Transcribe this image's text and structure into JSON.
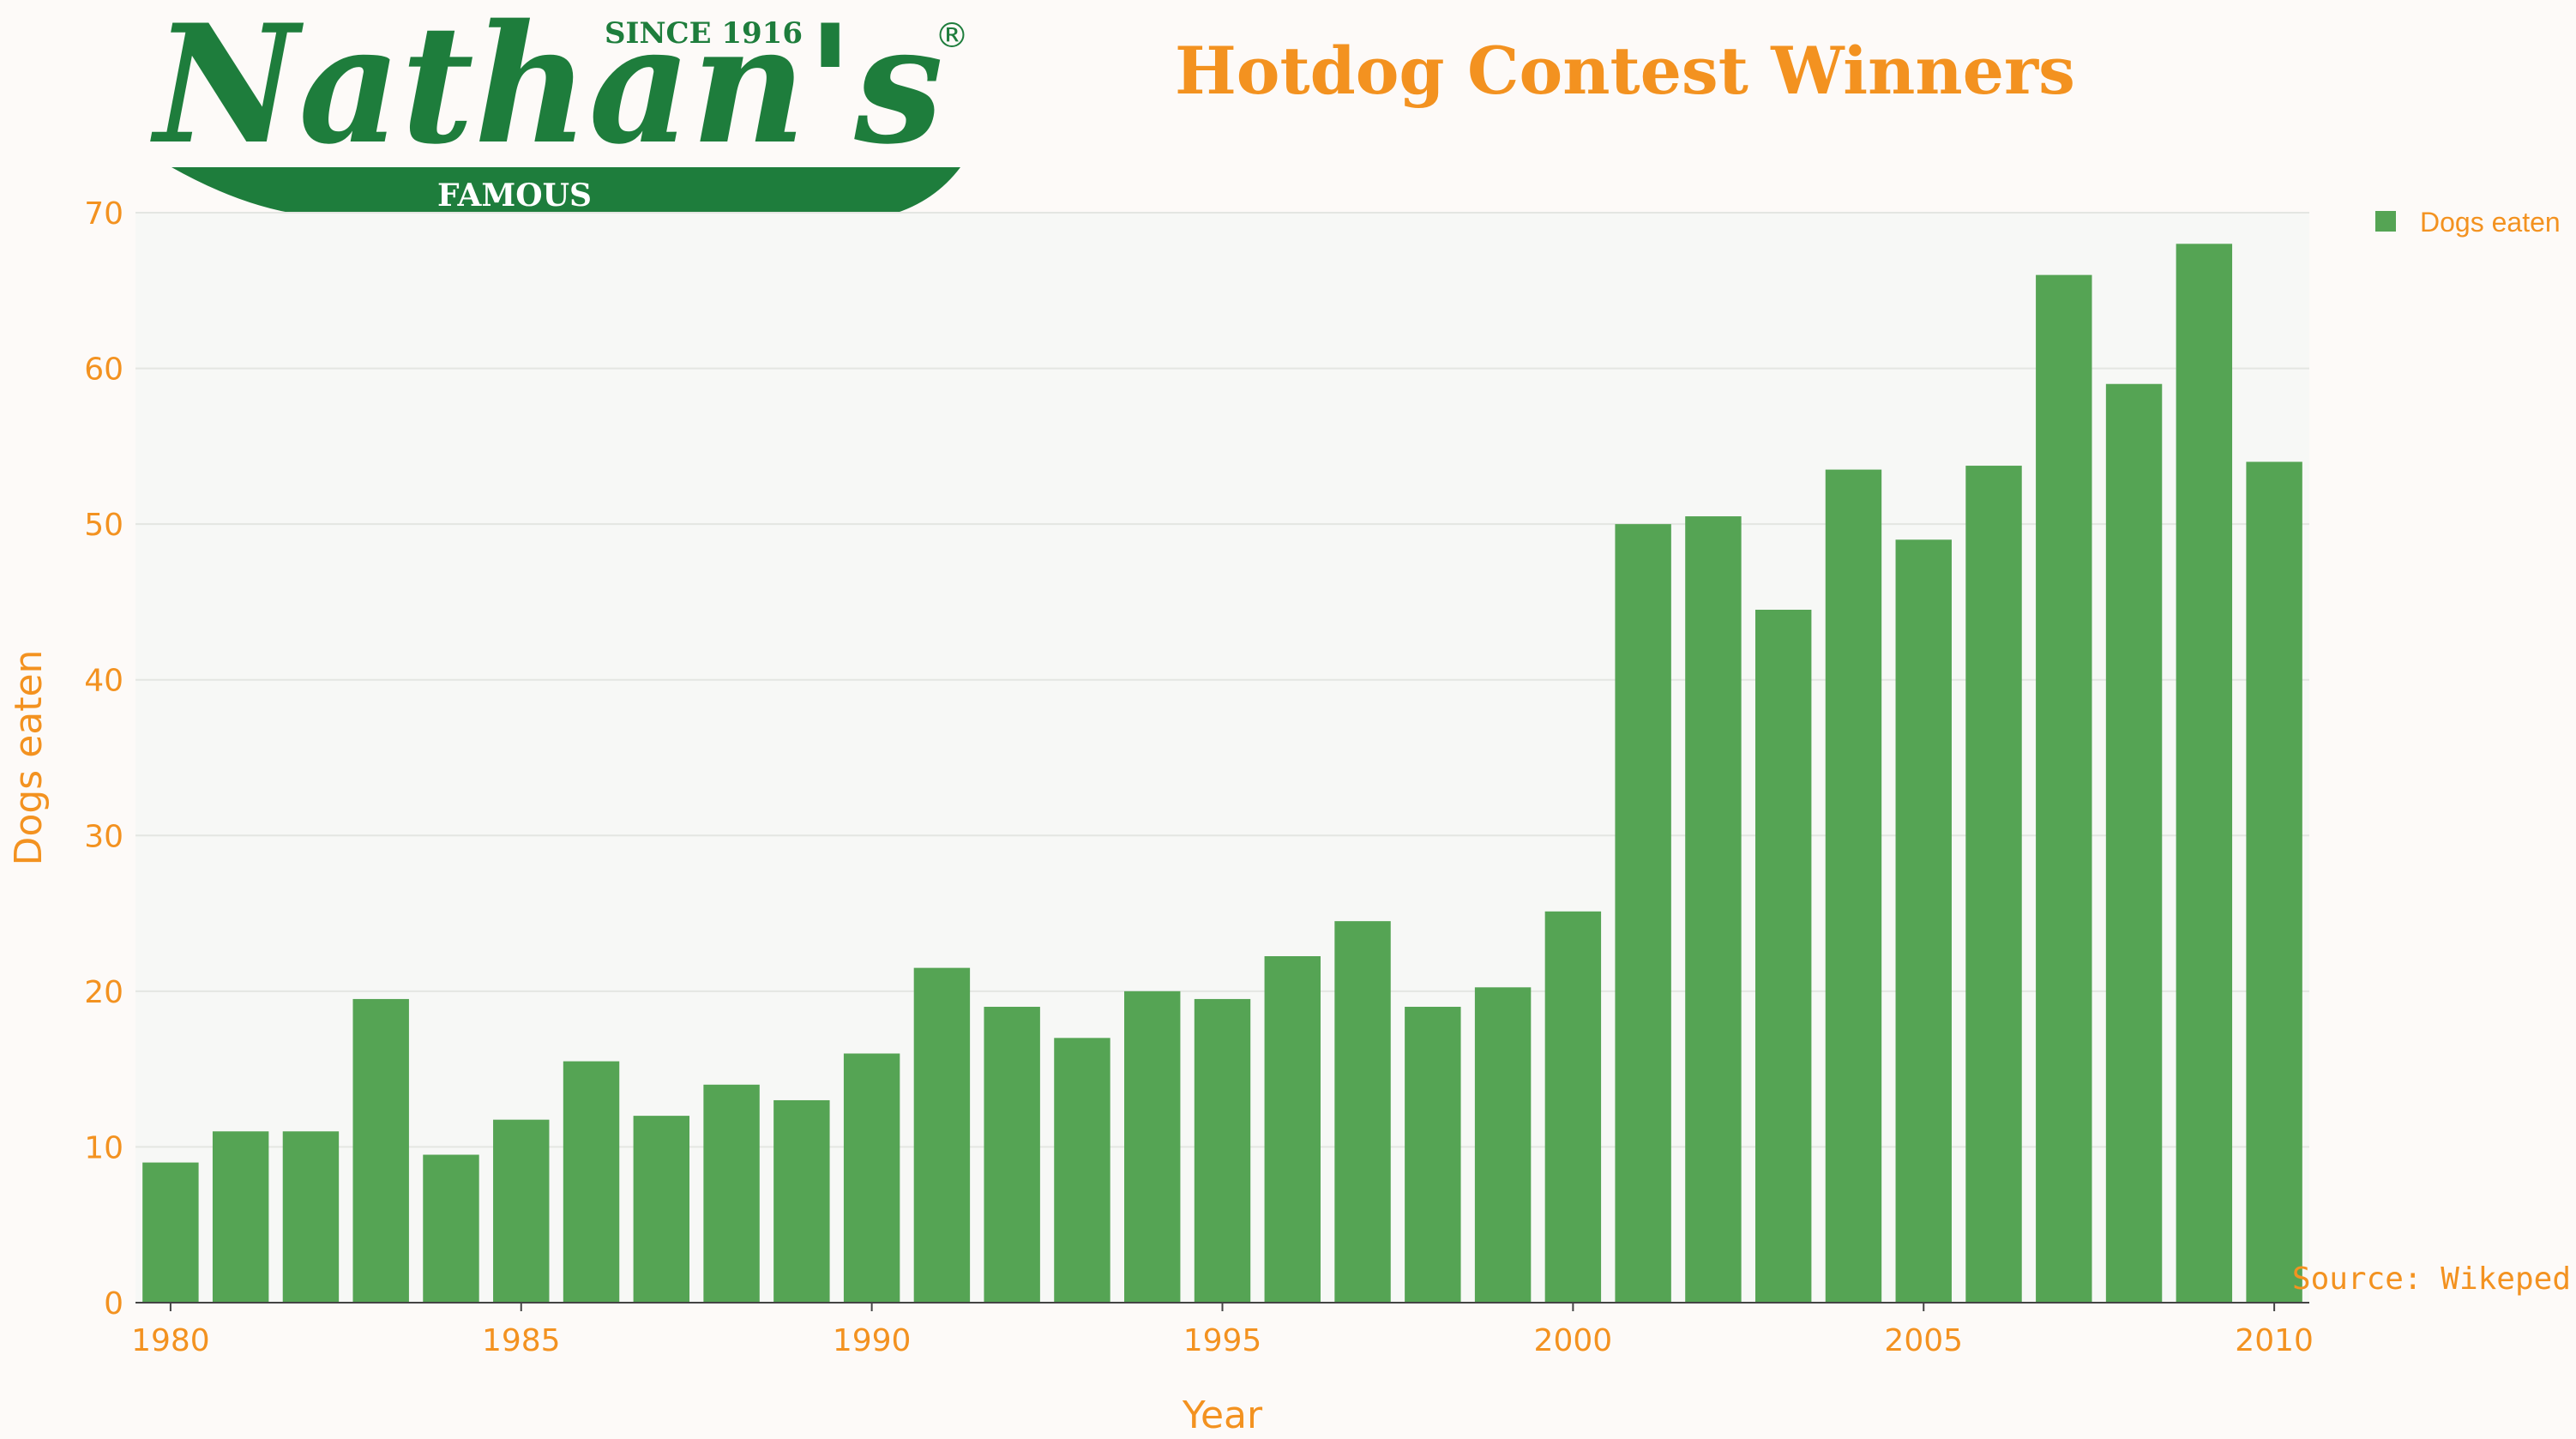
{
  "title": "Hotdog Contest Winners",
  "logo": {
    "brand": "Nathan's",
    "since": "SINCE 1916",
    "tagline": "FAMOUS",
    "registered": "®",
    "color": "#1e7d3c"
  },
  "source_note": "Source: Wikeped",
  "colors": {
    "bar": "#55a454",
    "text": "#f39220",
    "plot_bg": "#f7f8f6",
    "page_bg": "#fdfaf8",
    "grid": "#e4e6e2"
  },
  "chart_data": {
    "type": "bar",
    "title": "Hotdog Contest Winners",
    "xlabel": "Year",
    "ylabel": "Dogs eaten",
    "ylim": [
      0,
      70
    ],
    "yticks": [
      0,
      10,
      20,
      30,
      40,
      50,
      60,
      70
    ],
    "xticks": [
      1980,
      1985,
      1990,
      1995,
      2000,
      2005,
      2010
    ],
    "grid": true,
    "legend_position": "top-right",
    "categories": [
      1980,
      1981,
      1982,
      1983,
      1984,
      1985,
      1986,
      1987,
      1988,
      1989,
      1990,
      1991,
      1992,
      1993,
      1994,
      1995,
      1996,
      1997,
      1998,
      1999,
      2000,
      2001,
      2002,
      2003,
      2004,
      2005,
      2006,
      2007,
      2008,
      2009,
      2010
    ],
    "series": [
      {
        "name": "Dogs eaten",
        "values": [
          9,
          11,
          11,
          19.5,
          9.5,
          11.75,
          15.5,
          12,
          14,
          13,
          16,
          21.5,
          19,
          17,
          20,
          19.5,
          22.25,
          24.5,
          19,
          20.25,
          25.125,
          50,
          50.5,
          44.5,
          53.5,
          49,
          53.75,
          66,
          59,
          68,
          54
        ]
      }
    ]
  }
}
